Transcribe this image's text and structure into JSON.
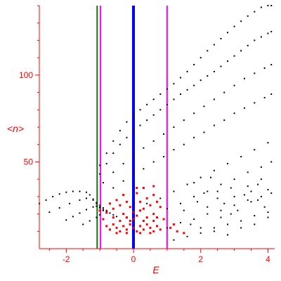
{
  "chart_data": {
    "type": "scatter",
    "title": "",
    "xlabel": "E",
    "ylabel": "<n>",
    "xlim": [
      -2.8,
      4.2
    ],
    "ylim": [
      0,
      140
    ],
    "x_ticks": [
      -2,
      0,
      2,
      4
    ],
    "y_ticks": [
      50,
      100
    ],
    "x_tick_labels": [
      "-2",
      "0",
      "2",
      "4"
    ],
    "y_tick_labels": [
      "50",
      "100"
    ],
    "grid": false,
    "legend": "none",
    "colors": {
      "axis": "#ff0000",
      "dots": "#000000",
      "cluster": "#ff0000",
      "line_green": "#007f00",
      "line_magenta": "#ff00ff",
      "line_blue": "#0000ff"
    },
    "vertical_lines": [
      {
        "x": -1.08,
        "color": "#007f00",
        "width": 2
      },
      {
        "x": -0.98,
        "color": "#ff00ff",
        "width": 2
      },
      {
        "x": 0.0,
        "color": "#0000ff",
        "width": 4
      },
      {
        "x": 1.0,
        "color": "#ff00ff",
        "width": 2
      }
    ],
    "series": [
      {
        "points": [
          [
            -2.8,
            26
          ],
          [
            -2.6,
            28
          ],
          [
            -2.4,
            30
          ],
          [
            -2.2,
            31.5
          ],
          [
            -2.0,
            32.5
          ],
          [
            -1.8,
            33
          ],
          [
            -1.6,
            33
          ],
          [
            -1.4,
            32.5
          ],
          [
            -1.3,
            31
          ],
          [
            -1.2,
            28
          ],
          [
            -1.1,
            26
          ],
          [
            -1.0,
            24
          ],
          [
            -0.9,
            22.5
          ],
          [
            -0.8,
            21.5
          ],
          [
            -0.7,
            20.5
          ],
          [
            -0.6,
            19.5
          ],
          [
            -0.5,
            18.5
          ]
        ]
      },
      {
        "points": [
          [
            -2.5,
            21
          ],
          [
            -2.2,
            23.5
          ],
          [
            -1.9,
            26
          ],
          [
            -1.6,
            28
          ],
          [
            -1.4,
            29
          ],
          [
            -1.2,
            28.5
          ],
          [
            -1.1,
            26.5
          ],
          [
            -1.0,
            25
          ],
          [
            -0.9,
            23.5
          ],
          [
            -0.8,
            22
          ]
        ]
      },
      {
        "points": [
          [
            -2.0,
            16.5
          ],
          [
            -1.8,
            18.5
          ],
          [
            -1.6,
            20.5
          ],
          [
            -1.4,
            22.5
          ],
          [
            -1.2,
            24
          ],
          [
            -1.1,
            24.5
          ],
          [
            -1.0,
            23.5
          ],
          [
            -0.9,
            22
          ],
          [
            -0.8,
            20.5
          ]
        ]
      },
      {
        "points": [
          [
            -1.5,
            14
          ],
          [
            -1.3,
            16
          ],
          [
            -1.1,
            18
          ],
          [
            -1.0,
            19.5
          ]
        ]
      },
      {
        "points": [
          [
            -1.0,
            48
          ],
          [
            -0.8,
            55
          ],
          [
            -0.6,
            62
          ],
          [
            -0.4,
            68
          ],
          [
            -0.2,
            73
          ],
          [
            0.0,
            77
          ],
          [
            0.2,
            80
          ],
          [
            0.4,
            83
          ],
          [
            0.6,
            86
          ],
          [
            0.8,
            89
          ],
          [
            1.0,
            92
          ],
          [
            1.2,
            95
          ],
          [
            1.4,
            98.5
          ],
          [
            1.6,
            102
          ],
          [
            1.8,
            106
          ],
          [
            2.0,
            110
          ],
          [
            2.2,
            114
          ],
          [
            2.4,
            117.5
          ],
          [
            2.6,
            121
          ],
          [
            2.8,
            124.5
          ],
          [
            3.0,
            128
          ],
          [
            3.2,
            131
          ],
          [
            3.4,
            134
          ],
          [
            3.6,
            136.5
          ],
          [
            3.8,
            139
          ],
          [
            4.0,
            140
          ],
          [
            4.1,
            140
          ]
        ]
      },
      {
        "points": [
          [
            -1.0,
            43
          ],
          [
            -0.8,
            49
          ],
          [
            -0.6,
            55
          ],
          [
            -0.4,
            60
          ],
          [
            -0.2,
            64
          ],
          [
            0.0,
            68
          ],
          [
            0.2,
            71
          ],
          [
            0.4,
            74
          ],
          [
            0.6,
            77
          ],
          [
            0.8,
            80
          ],
          [
            1.0,
            83
          ],
          [
            1.2,
            86
          ],
          [
            1.4,
            89
          ],
          [
            1.6,
            91.5
          ],
          [
            1.8,
            94
          ],
          [
            2.0,
            97
          ],
          [
            2.2,
            99.5
          ],
          [
            2.4,
            102
          ],
          [
            2.6,
            105
          ],
          [
            2.8,
            108
          ],
          [
            3.0,
            111
          ],
          [
            3.2,
            114
          ],
          [
            3.4,
            117
          ],
          [
            3.6,
            120
          ],
          [
            3.8,
            122
          ],
          [
            4.0,
            124
          ],
          [
            4.1,
            125
          ]
        ]
      },
      {
        "points": [
          [
            -0.9,
            38
          ],
          [
            -0.6,
            44
          ],
          [
            -0.3,
            49
          ],
          [
            0.0,
            54
          ],
          [
            0.3,
            58
          ],
          [
            0.6,
            62
          ],
          [
            0.9,
            66
          ],
          [
            1.2,
            70
          ],
          [
            1.5,
            74
          ],
          [
            1.8,
            78
          ],
          [
            2.1,
            82
          ],
          [
            2.4,
            86
          ],
          [
            2.7,
            90
          ],
          [
            3.0,
            94
          ],
          [
            3.3,
            98
          ],
          [
            3.6,
            101
          ],
          [
            3.9,
            104
          ],
          [
            4.1,
            106
          ]
        ]
      },
      {
        "points": [
          [
            -0.6,
            35
          ],
          [
            -0.3,
            39
          ],
          [
            0.0,
            43
          ],
          [
            0.3,
            46
          ],
          [
            0.6,
            50
          ],
          [
            0.9,
            53
          ],
          [
            1.2,
            57
          ],
          [
            1.5,
            60
          ],
          [
            1.8,
            64
          ],
          [
            2.1,
            67
          ],
          [
            2.4,
            71
          ],
          [
            2.7,
            74
          ],
          [
            3.0,
            78
          ],
          [
            3.3,
            81
          ],
          [
            3.6,
            84
          ],
          [
            3.9,
            87
          ],
          [
            4.1,
            89
          ]
        ]
      },
      {
        "points": [
          [
            0.4,
            26
          ],
          [
            0.8,
            29
          ],
          [
            1.2,
            33
          ],
          [
            1.6,
            37
          ],
          [
            2.0,
            41
          ],
          [
            2.4,
            45
          ],
          [
            2.8,
            49
          ],
          [
            3.2,
            53
          ],
          [
            3.6,
            57
          ],
          [
            4.0,
            61
          ]
        ]
      },
      {
        "points": [
          [
            0.6,
            20
          ],
          [
            1.0,
            23
          ],
          [
            1.4,
            26
          ],
          [
            1.8,
            30
          ],
          [
            2.2,
            33
          ],
          [
            2.6,
            37
          ],
          [
            3.0,
            40
          ],
          [
            3.4,
            44
          ],
          [
            3.8,
            47
          ],
          [
            4.1,
            50
          ]
        ]
      },
      {
        "points": [
          [
            1.0,
            12
          ],
          [
            1.4,
            15
          ],
          [
            1.8,
            17
          ],
          [
            2.2,
            20
          ],
          [
            2.6,
            22
          ],
          [
            3.0,
            25
          ],
          [
            3.4,
            28
          ],
          [
            3.8,
            30
          ],
          [
            4.1,
            32
          ]
        ]
      },
      {
        "points": [
          [
            1.2,
            5
          ],
          [
            1.6,
            7
          ],
          [
            2.0,
            9
          ],
          [
            2.4,
            12
          ],
          [
            2.8,
            14
          ],
          [
            3.2,
            16
          ],
          [
            3.6,
            19
          ],
          [
            4.0,
            21
          ]
        ]
      },
      {
        "points": [
          [
            1.8,
            38
          ],
          [
            2.1,
            32
          ],
          [
            2.5,
            29
          ],
          [
            2.9,
            35
          ],
          [
            3.3,
            31
          ],
          [
            3.7,
            37
          ],
          [
            4.0,
            34
          ],
          [
            2.3,
            41
          ],
          [
            2.7,
            26
          ],
          [
            3.1,
            22
          ],
          [
            3.5,
            27
          ],
          [
            3.9,
            24
          ],
          [
            2.2,
            24
          ],
          [
            2.6,
            18
          ],
          [
            3.0,
            30
          ],
          [
            3.4,
            36
          ],
          [
            3.8,
            40
          ],
          [
            1.9,
            27
          ],
          [
            1.5,
            22
          ],
          [
            1.7,
            14
          ],
          [
            2.0,
            12
          ],
          [
            2.4,
            10
          ],
          [
            2.8,
            8
          ],
          [
            3.2,
            12
          ],
          [
            3.6,
            14
          ],
          [
            4.0,
            18
          ],
          [
            3.5,
            33
          ],
          [
            2.9,
            20
          ],
          [
            2.5,
            33
          ],
          [
            3.7,
            28
          ]
        ]
      }
    ],
    "cluster": {
      "points": [
        [
          -0.8,
          13
        ],
        [
          -0.7,
          11
        ],
        [
          -0.6,
          14
        ],
        [
          -0.5,
          12
        ],
        [
          -0.4,
          10
        ],
        [
          -0.3,
          13
        ],
        [
          -0.2,
          11
        ],
        [
          -0.1,
          14
        ],
        [
          0.0,
          12
        ],
        [
          0.1,
          10
        ],
        [
          0.2,
          13
        ],
        [
          0.3,
          11
        ],
        [
          0.4,
          14
        ],
        [
          0.5,
          12
        ],
        [
          0.6,
          10
        ],
        [
          0.7,
          13
        ],
        [
          0.8,
          11
        ],
        [
          -0.5,
          9
        ],
        [
          -0.2,
          9
        ],
        [
          0.2,
          9
        ],
        [
          0.5,
          9
        ],
        [
          -0.4,
          16
        ],
        [
          -0.1,
          16
        ],
        [
          0.3,
          16
        ],
        [
          0.6,
          16
        ],
        [
          -0.2,
          18
        ],
        [
          0.1,
          19
        ],
        [
          0.4,
          18
        ],
        [
          -0.6,
          18
        ],
        [
          0.7,
          18
        ],
        [
          -0.9,
          17
        ],
        [
          0.9,
          17
        ],
        [
          -0.8,
          21
        ],
        [
          -0.6,
          23
        ],
        [
          -0.4,
          25
        ],
        [
          -0.3,
          20
        ],
        [
          -0.2,
          27
        ],
        [
          0.2,
          27
        ],
        [
          0.3,
          23
        ],
        [
          0.4,
          29
        ],
        [
          0.5,
          25
        ],
        [
          0.6,
          20
        ],
        [
          0.7,
          27
        ],
        [
          0.8,
          24
        ],
        [
          -0.7,
          26
        ],
        [
          0.1,
          35
        ],
        [
          0.3,
          35
        ],
        [
          -0.5,
          28
        ],
        [
          -0.3,
          31
        ],
        [
          0.6,
          31
        ],
        [
          1.1,
          12
        ],
        [
          1.3,
          10
        ],
        [
          1.2,
          14
        ],
        [
          1.5,
          9
        ],
        [
          -1.0,
          22
        ],
        [
          0.0,
          17
        ],
        [
          0.0,
          21
        ],
        [
          -0.1,
          24
        ],
        [
          0.2,
          22
        ],
        [
          0.1,
          32
        ],
        [
          0.6,
          36
        ]
      ]
    }
  }
}
